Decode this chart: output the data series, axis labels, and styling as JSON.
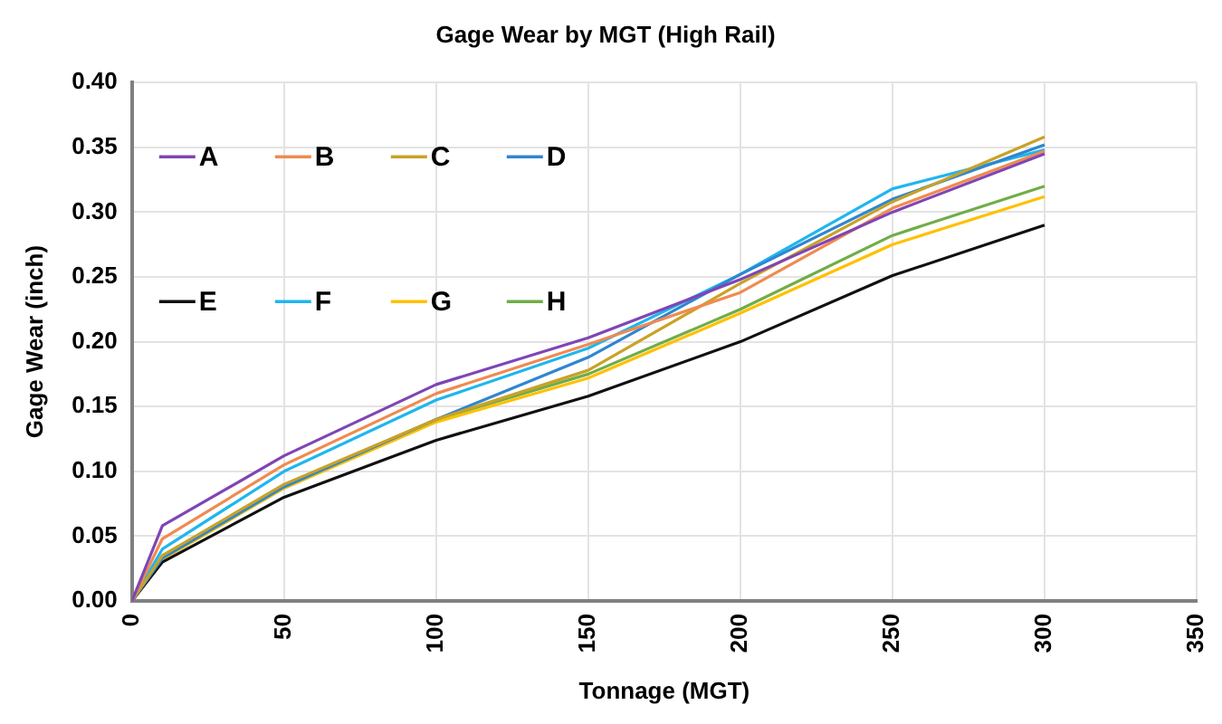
{
  "chart_data": {
    "type": "line",
    "title": "Gage Wear by MGT (High Rail)",
    "xlabel": "Tonnage (MGT)",
    "ylabel": "Gage Wear (inch)",
    "x": [
      0,
      10,
      50,
      100,
      150,
      200,
      250,
      300
    ],
    "series": [
      {
        "name": "A",
        "color": "#7f45b5",
        "values": [
          0,
          0.058,
          0.112,
          0.167,
          0.203,
          0.248,
          0.3,
          0.345
        ]
      },
      {
        "name": "B",
        "color": "#f08a50",
        "values": [
          0,
          0.048,
          0.105,
          0.16,
          0.198,
          0.238,
          0.303,
          0.347
        ]
      },
      {
        "name": "C",
        "color": "#c9a227",
        "values": [
          0,
          0.035,
          0.09,
          0.14,
          0.178,
          0.245,
          0.308,
          0.358
        ]
      },
      {
        "name": "D",
        "color": "#2f86d0",
        "values": [
          0,
          0.033,
          0.088,
          0.14,
          0.188,
          0.252,
          0.31,
          0.352
        ]
      },
      {
        "name": "E",
        "color": "#111111",
        "values": [
          0,
          0.03,
          0.08,
          0.124,
          0.158,
          0.2,
          0.251,
          0.29
        ]
      },
      {
        "name": "F",
        "color": "#1fb6ee",
        "values": [
          0,
          0.04,
          0.1,
          0.155,
          0.195,
          0.252,
          0.318,
          0.348
        ]
      },
      {
        "name": "G",
        "color": "#ffc000",
        "values": [
          0,
          0.032,
          0.087,
          0.138,
          0.172,
          0.222,
          0.275,
          0.312
        ]
      },
      {
        "name": "H",
        "color": "#70ad47",
        "values": [
          0,
          0.035,
          0.088,
          0.14,
          0.175,
          0.225,
          0.282,
          0.32
        ]
      }
    ],
    "xlim": [
      0,
      350
    ],
    "xticks": [
      0,
      50,
      100,
      150,
      200,
      250,
      300,
      350
    ],
    "ylim": [
      0,
      0.4
    ],
    "yticks": [
      {
        "value": 0,
        "label": "0.00"
      },
      0.05,
      {
        "value": 0.1,
        "label": "0.10"
      },
      0.15,
      {
        "value": 0.2,
        "label": "0.20"
      },
      0.25,
      {
        "value": 0.3,
        "label": "0.30"
      },
      0.35,
      {
        "value": 0.4,
        "label": "0.40"
      }
    ],
    "grid": true,
    "legend": "top left",
    "marker": "none",
    "line_style": "solid"
  }
}
